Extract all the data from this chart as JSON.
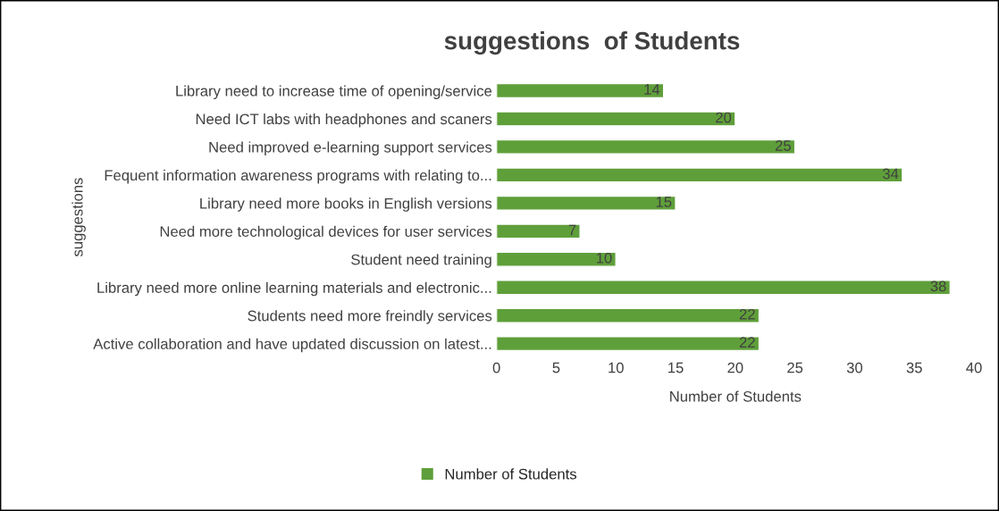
{
  "chart_data": {
    "type": "bar",
    "orientation": "horizontal",
    "title": "suggestions  of Students",
    "xlabel": "Number of Students",
    "ylabel": "suggestions",
    "categories": [
      "Library need to increase time of opening/service",
      "Need ICT labs with headphones and scaners",
      "Need improved e-learning support services",
      "Fequent information awareness programs with relating to...",
      "Library need more books in English versions",
      "Need more technological devices for user services",
      "Student need training",
      "Library need more online learning materials and electronic...",
      "Students need more freindly services",
      "Active collaboration and have updated discussion on latest..."
    ],
    "series": [
      {
        "name": "Number of Students",
        "color": "#5f9f3a",
        "values": [
          14,
          20,
          25,
          34,
          15,
          7,
          10,
          38,
          22,
          22
        ]
      }
    ],
    "xlim": [
      0,
      40
    ],
    "xticks": [
      0,
      5,
      10,
      15,
      20,
      25,
      30,
      35,
      40
    ],
    "data_labels": true,
    "grid": false,
    "legend": "bottom"
  }
}
